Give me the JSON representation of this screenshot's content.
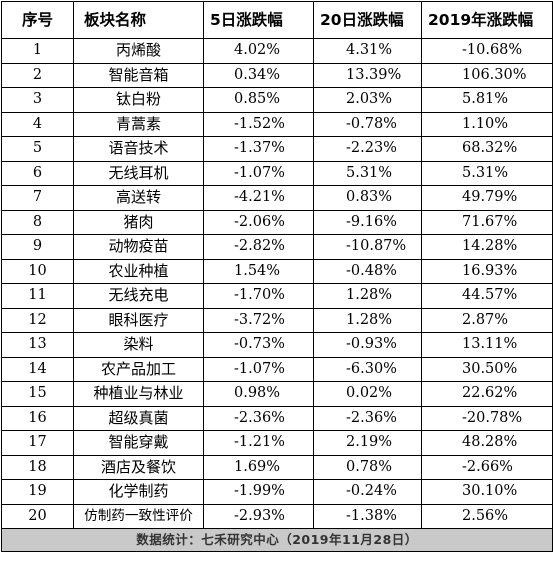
{
  "headers": [
    "序号",
    "板块名称",
    "5日涨跌幅",
    "20日涨跌幅",
    "2019年涨跌幅"
  ],
  "rows": [
    {
      "no": "1",
      "name": "丙烯酸",
      "d5": "4.02%",
      "d20": "4.31%",
      "y2019": "-10.68%"
    },
    {
      "no": "2",
      "name": "智能音箱",
      "d5": "0.34%",
      "d20": "13.39%",
      "y2019": "106.30%"
    },
    {
      "no": "3",
      "name": "钛白粉",
      "d5": "0.85%",
      "d20": "2.03%",
      "y2019": "5.81%"
    },
    {
      "no": "4",
      "name": "青蒿素",
      "d5": "-1.52%",
      "d20": "-0.78%",
      "y2019": "1.10%"
    },
    {
      "no": "5",
      "name": "语音技术",
      "d5": "-1.37%",
      "d20": "-2.23%",
      "y2019": "68.32%"
    },
    {
      "no": "6",
      "name": "无线耳机",
      "d5": "-1.07%",
      "d20": "5.31%",
      "y2019": "5.31%"
    },
    {
      "no": "7",
      "name": "高送转",
      "d5": "-4.21%",
      "d20": "0.83%",
      "y2019": "49.79%"
    },
    {
      "no": "8",
      "name": "猪肉",
      "d5": "-2.06%",
      "d20": "-9.16%",
      "y2019": "71.67%"
    },
    {
      "no": "9",
      "name": "动物疫苗",
      "d5": "-2.82%",
      "d20": "-10.87%",
      "y2019": "14.28%"
    },
    {
      "no": "10",
      "name": "农业种植",
      "d5": "1.54%",
      "d20": "-0.48%",
      "y2019": "16.93%"
    },
    {
      "no": "11",
      "name": "无线充电",
      "d5": "-1.70%",
      "d20": "1.28%",
      "y2019": "44.57%"
    },
    {
      "no": "12",
      "name": "眼科医疗",
      "d5": "-3.72%",
      "d20": "1.28%",
      "y2019": "2.87%"
    },
    {
      "no": "13",
      "name": "染料",
      "d5": "-0.73%",
      "d20": "-0.93%",
      "y2019": "13.11%"
    },
    {
      "no": "14",
      "name": "农产品加工",
      "d5": "-1.07%",
      "d20": "-6.30%",
      "y2019": "30.50%"
    },
    {
      "no": "15",
      "name": "种植业与林业",
      "d5": "0.98%",
      "d20": "0.02%",
      "y2019": "22.62%"
    },
    {
      "no": "16",
      "name": "超级真菌",
      "d5": "-2.36%",
      "d20": "-2.36%",
      "y2019": "-20.78%"
    },
    {
      "no": "17",
      "name": "智能穿戴",
      "d5": "-1.21%",
      "d20": "2.19%",
      "y2019": "48.28%"
    },
    {
      "no": "18",
      "name": "酒店及餐饮",
      "d5": "1.69%",
      "d20": "0.78%",
      "y2019": "-2.66%"
    },
    {
      "no": "19",
      "name": "化学制药",
      "d5": "-1.99%",
      "d20": "-0.24%",
      "y2019": "30.10%"
    },
    {
      "no": "20",
      "name": "仿制药一致性评价",
      "d5": "-2.93%",
      "d20": "-1.38%",
      "y2019": "2.56%"
    }
  ],
  "footer": "数据统计：七禾研究中心（2019年11月28日）"
}
